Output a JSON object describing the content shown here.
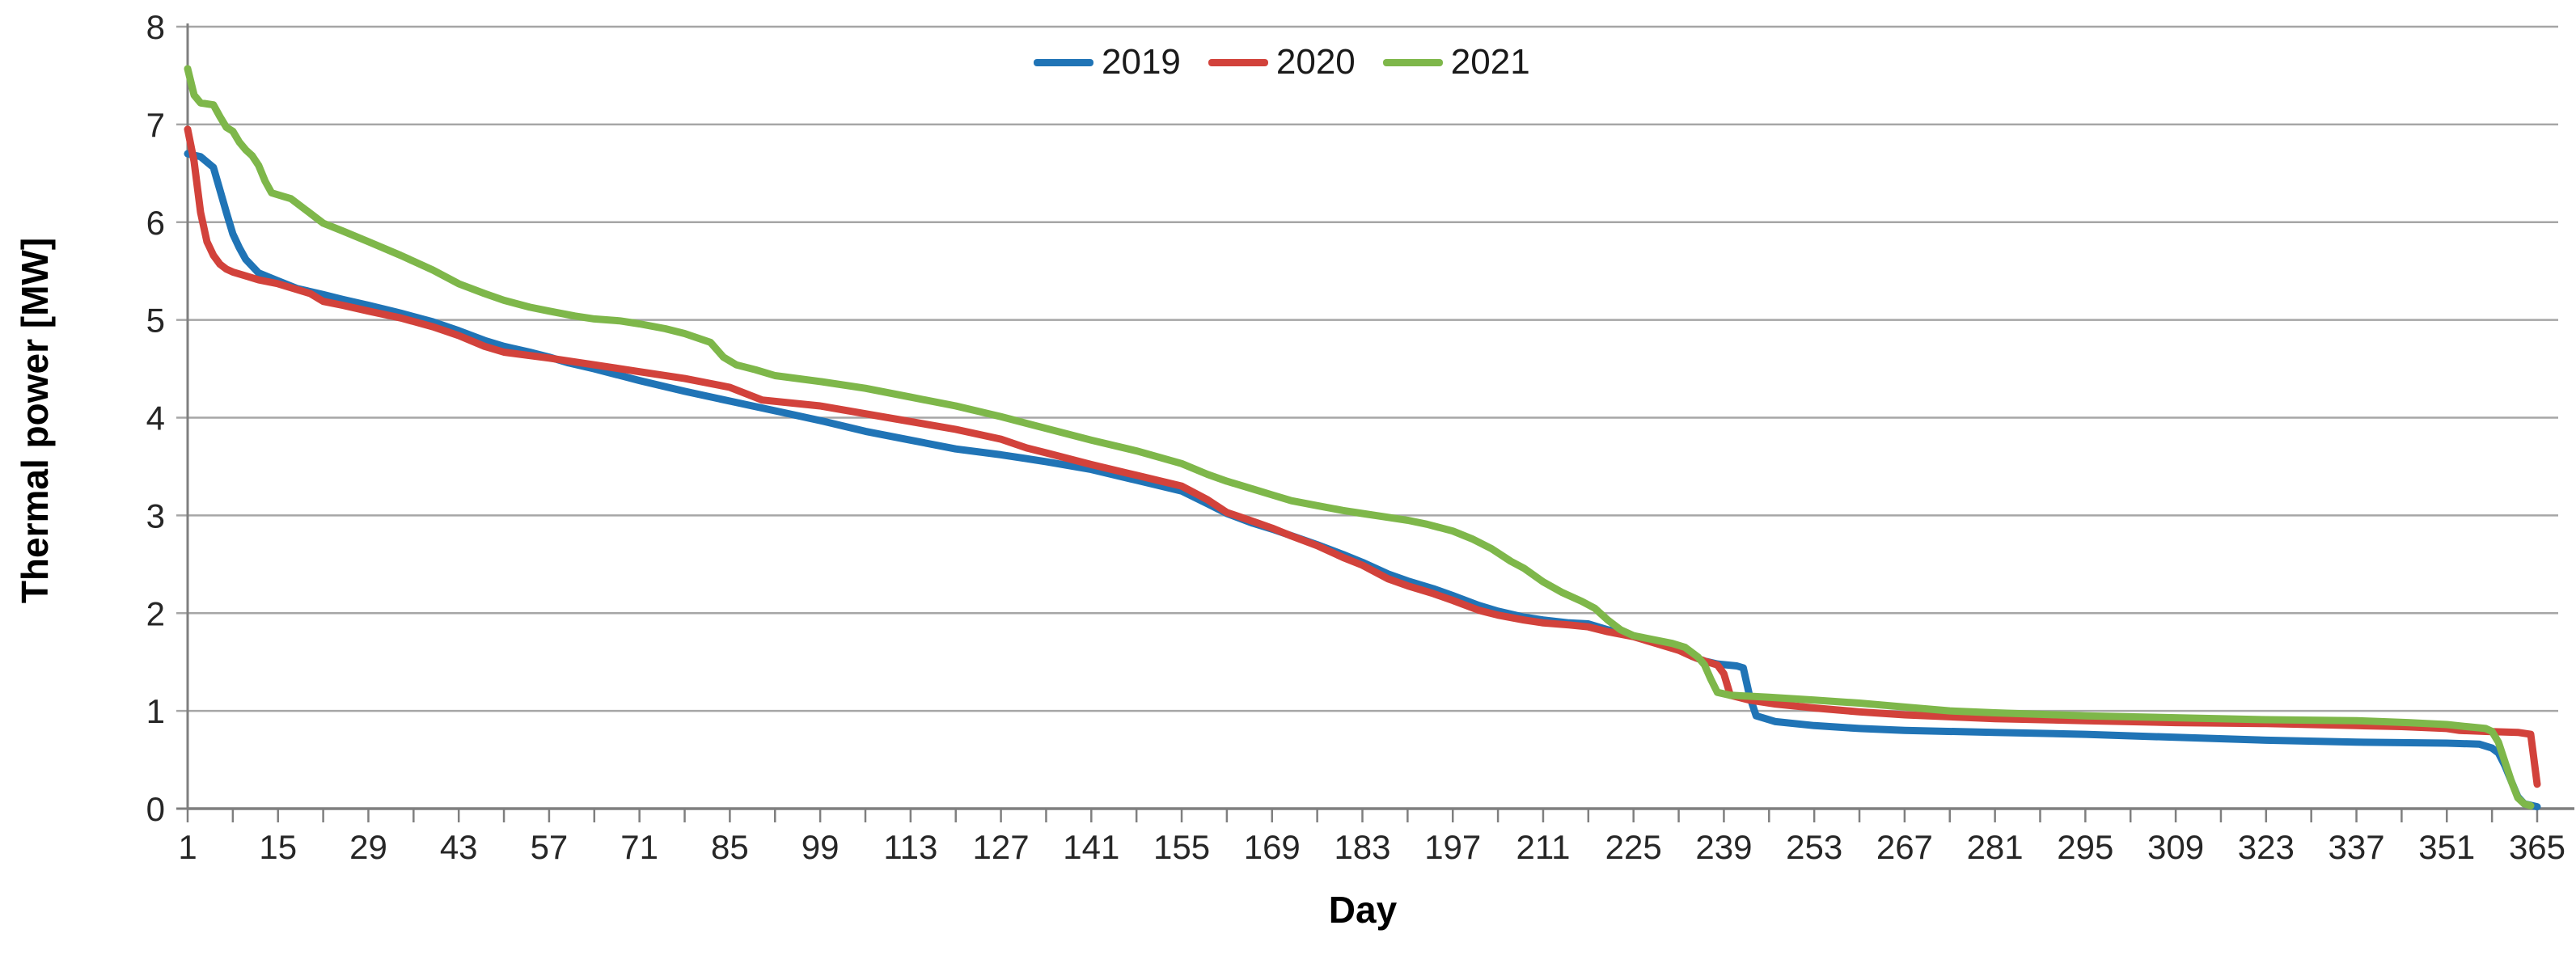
{
  "chart_data": {
    "type": "line",
    "title": "",
    "xlabel": "Day",
    "ylabel": "Thermal power [MW]",
    "xlim": [
      1,
      365
    ],
    "ylim": [
      0,
      8
    ],
    "x_tick_labels": [
      1,
      15,
      29,
      43,
      57,
      71,
      85,
      99,
      113,
      127,
      141,
      155,
      169,
      183,
      197,
      211,
      225,
      239,
      253,
      267,
      281,
      295,
      309,
      323,
      337,
      351,
      365
    ],
    "x_minor_tick_step_days": 7,
    "y_ticks": [
      0,
      1,
      2,
      3,
      4,
      5,
      6,
      7,
      8
    ],
    "grid": "horizontal",
    "legend_position": "top-center-inside",
    "series": [
      {
        "name": "2019",
        "color": "#2074B6",
        "points": [
          [
            1,
            6.7
          ],
          [
            3,
            6.67
          ],
          [
            5,
            6.56
          ],
          [
            6,
            6.33
          ],
          [
            7,
            6.1
          ],
          [
            8,
            5.88
          ],
          [
            9,
            5.74
          ],
          [
            10,
            5.62
          ],
          [
            12,
            5.48
          ],
          [
            15,
            5.4
          ],
          [
            18,
            5.32
          ],
          [
            22,
            5.26
          ],
          [
            25,
            5.21
          ],
          [
            29,
            5.15
          ],
          [
            34,
            5.07
          ],
          [
            39,
            4.98
          ],
          [
            43,
            4.89
          ],
          [
            47,
            4.79
          ],
          [
            50,
            4.73
          ],
          [
            54,
            4.67
          ],
          [
            57,
            4.62
          ],
          [
            60,
            4.56
          ],
          [
            64,
            4.5
          ],
          [
            71,
            4.38
          ],
          [
            78,
            4.27
          ],
          [
            85,
            4.17
          ],
          [
            92,
            4.07
          ],
          [
            99,
            3.97
          ],
          [
            106,
            3.86
          ],
          [
            113,
            3.77
          ],
          [
            120,
            3.68
          ],
          [
            127,
            3.62
          ],
          [
            134,
            3.55
          ],
          [
            141,
            3.47
          ],
          [
            148,
            3.36
          ],
          [
            155,
            3.25
          ],
          [
            159,
            3.12
          ],
          [
            162,
            3.02
          ],
          [
            166,
            2.92
          ],
          [
            169,
            2.86
          ],
          [
            173,
            2.77
          ],
          [
            176,
            2.7
          ],
          [
            180,
            2.6
          ],
          [
            183,
            2.52
          ],
          [
            187,
            2.4
          ],
          [
            190,
            2.33
          ],
          [
            194,
            2.25
          ],
          [
            197,
            2.18
          ],
          [
            201,
            2.08
          ],
          [
            204,
            2.02
          ],
          [
            208,
            1.96
          ],
          [
            211,
            1.93
          ],
          [
            215,
            1.9
          ],
          [
            218,
            1.89
          ],
          [
            221,
            1.83
          ],
          [
            225,
            1.77
          ],
          [
            229,
            1.7
          ],
          [
            232,
            1.64
          ],
          [
            234,
            1.56
          ],
          [
            236,
            1.51
          ],
          [
            238,
            1.48
          ],
          [
            241,
            1.46
          ],
          [
            242,
            1.44
          ],
          [
            243,
            1.15
          ],
          [
            244,
            0.95
          ],
          [
            247,
            0.89
          ],
          [
            253,
            0.85
          ],
          [
            260,
            0.82
          ],
          [
            267,
            0.8
          ],
          [
            281,
            0.78
          ],
          [
            295,
            0.76
          ],
          [
            309,
            0.73
          ],
          [
            323,
            0.7
          ],
          [
            337,
            0.68
          ],
          [
            351,
            0.67
          ],
          [
            356,
            0.66
          ],
          [
            358,
            0.62
          ],
          [
            359,
            0.57
          ],
          [
            360,
            0.44
          ],
          [
            361,
            0.28
          ],
          [
            362,
            0.12
          ],
          [
            363,
            0.05
          ],
          [
            365,
            0.02
          ]
        ]
      },
      {
        "name": "2020",
        "color": "#D2423B",
        "points": [
          [
            1,
            6.95
          ],
          [
            2,
            6.62
          ],
          [
            3,
            6.1
          ],
          [
            4,
            5.8
          ],
          [
            5,
            5.66
          ],
          [
            6,
            5.57
          ],
          [
            7,
            5.52
          ],
          [
            8,
            5.49
          ],
          [
            10,
            5.45
          ],
          [
            12,
            5.41
          ],
          [
            15,
            5.37
          ],
          [
            18,
            5.31
          ],
          [
            20,
            5.27
          ],
          [
            22,
            5.19
          ],
          [
            25,
            5.15
          ],
          [
            29,
            5.09
          ],
          [
            34,
            5.02
          ],
          [
            39,
            4.93
          ],
          [
            43,
            4.84
          ],
          [
            47,
            4.73
          ],
          [
            50,
            4.67
          ],
          [
            57,
            4.61
          ],
          [
            64,
            4.54
          ],
          [
            71,
            4.47
          ],
          [
            78,
            4.4
          ],
          [
            85,
            4.31
          ],
          [
            90,
            4.18
          ],
          [
            99,
            4.12
          ],
          [
            106,
            4.04
          ],
          [
            113,
            3.96
          ],
          [
            120,
            3.88
          ],
          [
            127,
            3.78
          ],
          [
            131,
            3.69
          ],
          [
            134,
            3.64
          ],
          [
            141,
            3.52
          ],
          [
            148,
            3.41
          ],
          [
            155,
            3.3
          ],
          [
            159,
            3.16
          ],
          [
            162,
            3.03
          ],
          [
            166,
            2.94
          ],
          [
            169,
            2.87
          ],
          [
            172,
            2.79
          ],
          [
            176,
            2.69
          ],
          [
            180,
            2.57
          ],
          [
            183,
            2.49
          ],
          [
            187,
            2.35
          ],
          [
            190,
            2.28
          ],
          [
            194,
            2.2
          ],
          [
            197,
            2.13
          ],
          [
            201,
            2.03
          ],
          [
            204,
            1.98
          ],
          [
            208,
            1.93
          ],
          [
            211,
            1.9
          ],
          [
            215,
            1.88
          ],
          [
            218,
            1.86
          ],
          [
            221,
            1.81
          ],
          [
            225,
            1.76
          ],
          [
            229,
            1.68
          ],
          [
            232,
            1.62
          ],
          [
            234,
            1.56
          ],
          [
            236,
            1.51
          ],
          [
            238,
            1.47
          ],
          [
            239,
            1.38
          ],
          [
            240,
            1.16
          ],
          [
            243,
            1.11
          ],
          [
            247,
            1.07
          ],
          [
            253,
            1.03
          ],
          [
            260,
            0.99
          ],
          [
            267,
            0.96
          ],
          [
            274,
            0.94
          ],
          [
            281,
            0.92
          ],
          [
            295,
            0.9
          ],
          [
            309,
            0.88
          ],
          [
            323,
            0.87
          ],
          [
            337,
            0.85
          ],
          [
            344,
            0.84
          ],
          [
            351,
            0.82
          ],
          [
            353,
            0.8
          ],
          [
            357,
            0.79
          ],
          [
            362,
            0.78
          ],
          [
            364,
            0.76
          ],
          [
            365,
            0.25
          ]
        ]
      },
      {
        "name": "2021",
        "color": "#7EB74A",
        "points": [
          [
            1,
            7.57
          ],
          [
            2,
            7.3
          ],
          [
            3,
            7.22
          ],
          [
            5,
            7.2
          ],
          [
            6,
            7.08
          ],
          [
            7,
            6.97
          ],
          [
            8,
            6.93
          ],
          [
            9,
            6.82
          ],
          [
            10,
            6.74
          ],
          [
            11,
            6.68
          ],
          [
            12,
            6.58
          ],
          [
            13,
            6.42
          ],
          [
            14,
            6.3
          ],
          [
            16,
            6.26
          ],
          [
            17,
            6.24
          ],
          [
            19,
            6.14
          ],
          [
            22,
            5.99
          ],
          [
            25,
            5.91
          ],
          [
            29,
            5.8
          ],
          [
            34,
            5.66
          ],
          [
            39,
            5.51
          ],
          [
            43,
            5.37
          ],
          [
            47,
            5.27
          ],
          [
            50,
            5.2
          ],
          [
            54,
            5.13
          ],
          [
            57,
            5.09
          ],
          [
            61,
            5.04
          ],
          [
            64,
            5.01
          ],
          [
            68,
            4.99
          ],
          [
            71,
            4.96
          ],
          [
            75,
            4.91
          ],
          [
            78,
            4.86
          ],
          [
            82,
            4.77
          ],
          [
            84,
            4.62
          ],
          [
            86,
            4.54
          ],
          [
            89,
            4.49
          ],
          [
            92,
            4.43
          ],
          [
            99,
            4.37
          ],
          [
            106,
            4.3
          ],
          [
            113,
            4.21
          ],
          [
            120,
            4.12
          ],
          [
            127,
            4.01
          ],
          [
            134,
            3.89
          ],
          [
            141,
            3.77
          ],
          [
            148,
            3.66
          ],
          [
            155,
            3.53
          ],
          [
            159,
            3.42
          ],
          [
            162,
            3.35
          ],
          [
            166,
            3.27
          ],
          [
            169,
            3.21
          ],
          [
            172,
            3.15
          ],
          [
            176,
            3.1
          ],
          [
            180,
            3.05
          ],
          [
            183,
            3.02
          ],
          [
            187,
            2.98
          ],
          [
            190,
            2.95
          ],
          [
            193,
            2.91
          ],
          [
            197,
            2.84
          ],
          [
            200,
            2.76
          ],
          [
            203,
            2.66
          ],
          [
            206,
            2.53
          ],
          [
            208,
            2.46
          ],
          [
            211,
            2.32
          ],
          [
            214,
            2.21
          ],
          [
            217,
            2.12
          ],
          [
            219,
            2.05
          ],
          [
            221,
            1.93
          ],
          [
            223,
            1.83
          ],
          [
            225,
            1.77
          ],
          [
            228,
            1.73
          ],
          [
            231,
            1.69
          ],
          [
            233,
            1.65
          ],
          [
            235,
            1.55
          ],
          [
            236,
            1.47
          ],
          [
            237,
            1.32
          ],
          [
            238,
            1.19
          ],
          [
            240,
            1.16
          ],
          [
            246,
            1.14
          ],
          [
            253,
            1.11
          ],
          [
            260,
            1.08
          ],
          [
            267,
            1.04
          ],
          [
            274,
            1.0
          ],
          [
            281,
            0.98
          ],
          [
            295,
            0.95
          ],
          [
            309,
            0.93
          ],
          [
            323,
            0.91
          ],
          [
            337,
            0.9
          ],
          [
            345,
            0.88
          ],
          [
            351,
            0.86
          ],
          [
            354,
            0.84
          ],
          [
            357,
            0.82
          ],
          [
            358,
            0.79
          ],
          [
            359,
            0.68
          ],
          [
            360,
            0.48
          ],
          [
            361,
            0.28
          ],
          [
            362,
            0.11
          ],
          [
            363,
            0.05
          ],
          [
            364,
            0.03
          ]
        ]
      }
    ]
  },
  "styles": {
    "grid_color": "#A6A6A6",
    "axis_color": "#7F7F7F",
    "tick_label_color": "#262626",
    "background": "#FFFFFF"
  }
}
